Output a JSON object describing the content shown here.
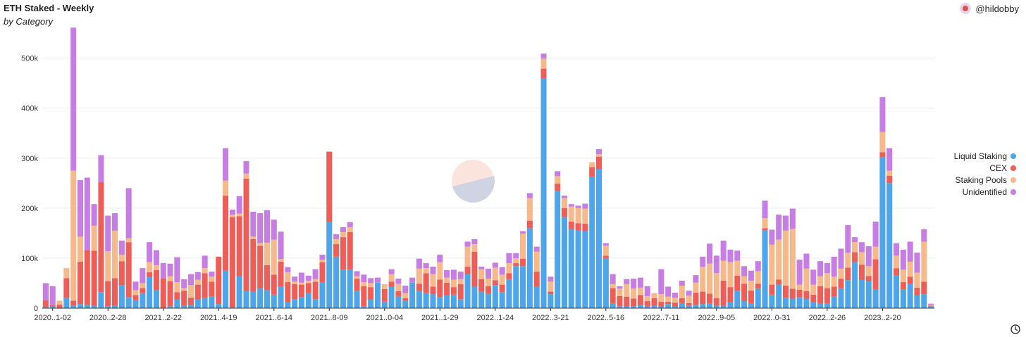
{
  "header": {
    "title": "ETH Staked - Weekly",
    "subtitle": "by Category",
    "author": "@hildobby"
  },
  "chart_data": {
    "type": "bar",
    "stacked": true,
    "ylim": [
      0,
      560000
    ],
    "yticks": [
      "0",
      "100k",
      "200k",
      "300k",
      "400k",
      "500k"
    ],
    "ytick_values": [
      0,
      100000,
      200000,
      300000,
      400000,
      500000
    ],
    "xtick_labels": [
      "2020..1-02",
      "2020..2-28",
      "2021..2-22",
      "2021..4-19",
      "2021..6-14",
      "2021..8-09",
      "2021..0-04",
      "2021..1-29",
      "2022..1-24",
      "2022..3-21",
      "2022..5-16",
      "2022..7-11",
      "2022..9-05",
      "2022..0-31",
      "2022..2-26",
      "2023..2-20"
    ],
    "xtick_indices": [
      1,
      9,
      17,
      25,
      33,
      41,
      49,
      57,
      65,
      73,
      81,
      89,
      97,
      105,
      113,
      121
    ],
    "legend_position": "right",
    "grid": true,
    "series": [
      {
        "name": "Liquid Staking",
        "color": "#4ea5ea",
        "values": [
          2000,
          3000,
          0,
          20000,
          5000,
          8000,
          6000,
          5000,
          32000,
          4000,
          5000,
          46000,
          22000,
          16000,
          30000,
          62000,
          36000,
          0,
          4000,
          17000,
          5000,
          6000,
          17000,
          20000,
          23000,
          8000,
          75000,
          2000,
          64000,
          34000,
          33000,
          40000,
          36000,
          27000,
          43000,
          12000,
          18000,
          22000,
          30000,
          18000,
          52000,
          173000,
          103000,
          77000,
          77000,
          34000,
          4000,
          17000,
          51000,
          13000,
          43000,
          24000,
          15000,
          51000,
          34000,
          30000,
          28000,
          22000,
          26000,
          27000,
          18000,
          68000,
          43000,
          33000,
          29000,
          46000,
          32000,
          58000,
          84000,
          84000,
          160000,
          43000,
          459000,
          28000,
          234000,
          182000,
          158000,
          155000,
          154000,
          262000,
          278000,
          100000,
          10000,
          4000,
          3000,
          4000,
          6000,
          4000,
          5000,
          3000,
          8000,
          3000,
          10000,
          5000,
          6000,
          8000,
          9000,
          5000,
          5000,
          12000,
          35000,
          14000,
          10000,
          39000,
          155000,
          27000,
          47000,
          20000,
          19000,
          22000,
          19000,
          12000,
          9000,
          10000,
          23000,
          39000,
          56000,
          92000,
          57000,
          54000,
          38000,
          302000,
          250000,
          65000,
          37000,
          48000,
          26000,
          28000,
          4000
        ],
        "value_labels": []
      },
      {
        "name": "CEX",
        "color": "#ee5e58",
        "values": [
          14000,
          3000,
          7000,
          40000,
          10000,
          85000,
          110000,
          110000,
          220000,
          50000,
          55000,
          48000,
          110000,
          10000,
          10000,
          10000,
          40000,
          60000,
          50000,
          15000,
          30000,
          15000,
          30000,
          50000,
          30000,
          95000,
          150000,
          180000,
          120000,
          225000,
          105000,
          85000,
          50000,
          40000,
          50000,
          40000,
          30000,
          25000,
          20000,
          35000,
          40000,
          140000,
          25000,
          65000,
          75000,
          25000,
          40000,
          25000,
          0,
          25000,
          10000,
          10000,
          5000,
          0,
          15000,
          40000,
          15000,
          35000,
          25000,
          15000,
          30000,
          15000,
          70000,
          25000,
          15000,
          10000,
          15000,
          12000,
          6000,
          15000,
          15000,
          30000,
          20000,
          5000,
          15000,
          18000,
          15000,
          15000,
          15000,
          20000,
          25000,
          5000,
          30000,
          20000,
          20000,
          15000,
          20000,
          10000,
          15000,
          10000,
          5000,
          8000,
          10000,
          5000,
          25000,
          25000,
          20000,
          15000,
          50000,
          30000,
          30000,
          35000,
          25000,
          10000,
          5000,
          20000,
          10000,
          25000,
          20000,
          15000,
          15000,
          15000,
          35000,
          30000,
          20000,
          20000,
          25000,
          20000,
          30000,
          10000,
          60000,
          10000,
          15000,
          15000,
          15000,
          15000,
          15000,
          25000,
          1000
        ],
        "value_labels": []
      },
      {
        "name": "Staking Pools",
        "color": "#f6b98c",
        "values": [
          0,
          0,
          8000,
          20000,
          260000,
          50000,
          0,
          50000,
          0,
          60000,
          95000,
          13000,
          8000,
          10000,
          10000,
          20000,
          10000,
          0,
          10000,
          20000,
          5000,
          25000,
          10000,
          10000,
          10000,
          0,
          30000,
          5000,
          5000,
          10000,
          5000,
          5000,
          45000,
          70000,
          5000,
          20000,
          5000,
          4000,
          5000,
          5000,
          5000,
          0,
          10000,
          10000,
          10000,
          5000,
          8000,
          8000,
          0,
          10000,
          15000,
          15000,
          10000,
          0,
          30000,
          10000,
          25000,
          35000,
          10000,
          15000,
          10000,
          40000,
          15000,
          20000,
          15000,
          25000,
          20000,
          20000,
          10000,
          50000,
          45000,
          40000,
          20000,
          20000,
          15000,
          20000,
          30000,
          30000,
          30000,
          10000,
          5000,
          20000,
          8000,
          15000,
          25000,
          20000,
          15000,
          10000,
          10000,
          15000,
          10000,
          10000,
          25000,
          15000,
          20000,
          50000,
          60000,
          50000,
          40000,
          50000,
          30000,
          15000,
          20000,
          25000,
          20000,
          80000,
          80000,
          110000,
          120000,
          10000,
          45000,
          20000,
          20000,
          30000,
          20000,
          20000,
          30000,
          20000,
          25000,
          20000,
          25000,
          40000,
          10000,
          25000,
          25000,
          30000,
          30000,
          80000,
          2000
        ],
        "value_labels": []
      },
      {
        "name": "Unidentified",
        "color": "#c67ee2",
        "values": [
          34000,
          38000,
          0,
          0,
          286000,
          113000,
          145000,
          43000,
          54000,
          71000,
          35000,
          28000,
          100000,
          17000,
          30000,
          40000,
          30000,
          30000,
          25000,
          50000,
          18000,
          22000,
          15000,
          25000,
          10000,
          0,
          65000,
          10000,
          35000,
          25000,
          50000,
          60000,
          65000,
          40000,
          55000,
          10000,
          10000,
          20000,
          10000,
          20000,
          10000,
          0,
          10000,
          10000,
          10000,
          10000,
          15000,
          10000,
          10000,
          0,
          10000,
          10000,
          15000,
          10000,
          20000,
          10000,
          15000,
          15000,
          15000,
          20000,
          15000,
          10000,
          10000,
          5000,
          20000,
          10000,
          15000,
          20000,
          10000,
          5000,
          10000,
          10000,
          10000,
          10000,
          10000,
          5000,
          5000,
          5000,
          10000,
          0,
          10000,
          5000,
          20000,
          5000,
          10000,
          20000,
          20000,
          20000,
          0,
          50000,
          20000,
          10000,
          10000,
          10000,
          15000,
          20000,
          40000,
          35000,
          40000,
          25000,
          20000,
          20000,
          20000,
          20000,
          35000,
          30000,
          50000,
          30000,
          40000,
          50000,
          30000,
          30000,
          30000,
          20000,
          40000,
          40000,
          55000,
          10000,
          20000,
          40000,
          50000,
          70000,
          45000,
          25000,
          40000,
          40000,
          40000,
          25000,
          2000
        ],
        "value_labels": []
      }
    ]
  }
}
